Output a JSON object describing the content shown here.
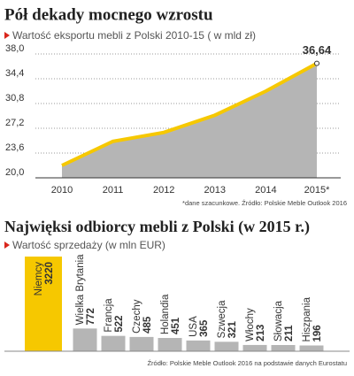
{
  "chart_data": [
    {
      "type": "area",
      "title": "Pół dekady mocnego wzrostu",
      "subtitle": "Wartość eksportu mebli z Polski 2010-15 ( w mld zł)",
      "categories": [
        "2010",
        "2011",
        "2012",
        "2013",
        "2014",
        "2015*"
      ],
      "values": [
        21.8,
        25.3,
        26.6,
        29.1,
        32.6,
        36.64
      ],
      "value_labels": [
        null,
        null,
        null,
        null,
        null,
        "36,64"
      ],
      "line_color": "#f6c800",
      "area_color": "#b5b5b5",
      "ylim": [
        20.0,
        38.0
      ],
      "yticks": [
        {
          "value": 20.0,
          "label": "20,0"
        },
        {
          "value": 23.6,
          "label": "23,6"
        },
        {
          "value": 27.2,
          "label": "27,2"
        },
        {
          "value": 30.8,
          "label": "30,8"
        },
        {
          "value": 34.4,
          "label": "34,4"
        },
        {
          "value": 38.0,
          "label": "38,0"
        }
      ],
      "grid": true,
      "note": "*dane szacunkowe. Źródło: Polskie Meble Outlook 2016"
    },
    {
      "type": "bar",
      "title": "Najwięksi odbiorcy mebli z Polski (w 2015 r.)",
      "subtitle": "Wartość sprzedaży (w mln EUR)",
      "categories": [
        "Niemcy",
        "Wielka Brytania",
        "Francja",
        "Czechy",
        "Holandia",
        "USA",
        "Szwecja",
        "Włochy",
        "Słowacja",
        "Hiszpania"
      ],
      "values": [
        3220,
        772,
        522,
        485,
        451,
        365,
        321,
        213,
        211,
        196
      ],
      "colors": [
        "#f6c800",
        "#b5b5b5",
        "#b5b5b5",
        "#b5b5b5",
        "#b5b5b5",
        "#b5b5b5",
        "#b5b5b5",
        "#b5b5b5",
        "#b5b5b5",
        "#b5b5b5"
      ],
      "note": "Źródło: Polskie Meble Outlook 2016 na podstawie danych Eurostatu"
    }
  ]
}
